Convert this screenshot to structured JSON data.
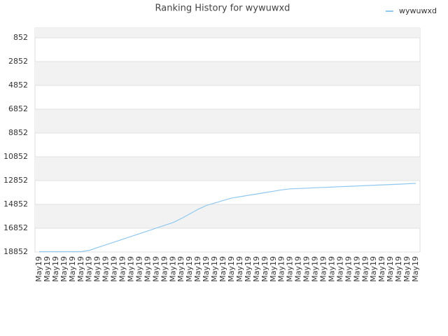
{
  "chart_data": {
    "type": "line",
    "title": "Ranking History for wywuwxd",
    "categories": [
      "May19",
      "May19",
      "May19",
      "May19",
      "May19",
      "May19",
      "May19",
      "May19",
      "May19",
      "May19",
      "May19",
      "May19",
      "May19",
      "May19",
      "May19",
      "May19",
      "May19",
      "May19",
      "May19",
      "May19",
      "May19",
      "May19",
      "May19",
      "May19",
      "May19",
      "May19",
      "May19",
      "May19",
      "May19",
      "May19",
      "May19",
      "May19",
      "May19",
      "May19",
      "May19",
      "May19",
      "May19",
      "May19",
      "May19",
      "May19",
      "May19",
      "May19",
      "May19",
      "May19",
      "May19",
      "May19"
    ],
    "series": [
      {
        "name": "wywuwxd",
        "color": "#90c8f0",
        "values": [
          18823,
          18823,
          18823,
          18823,
          18823,
          18823,
          18711,
          18475,
          18240,
          18011,
          17776,
          17540,
          17311,
          17076,
          16840,
          16605,
          16376,
          16034,
          15646,
          15258,
          14934,
          14729,
          14517,
          14317,
          14205,
          14088,
          13976,
          13858,
          13746,
          13629,
          13546,
          13517,
          13488,
          13452,
          13423,
          13394,
          13364,
          13335,
          13305,
          13270,
          13240,
          13211,
          13182,
          13152,
          13117,
          13088
        ]
      }
    ],
    "ylim": [
      18852,
      28
    ],
    "yticks": [
      852,
      2852,
      4852,
      6852,
      8852,
      10852,
      12852,
      14852,
      16852,
      18852
    ],
    "grid": true,
    "legend": "top-right"
  }
}
